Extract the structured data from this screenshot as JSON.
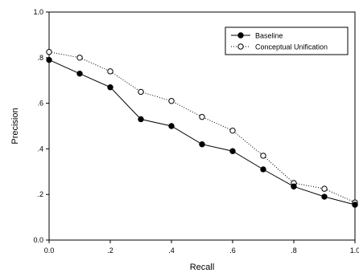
{
  "chart_data": {
    "type": "line",
    "title": "",
    "xlabel": "Recall",
    "ylabel": "Precision",
    "xlim": [
      0.0,
      1.0
    ],
    "ylim": [
      0.0,
      1.0
    ],
    "x_ticks": [
      0.0,
      0.2,
      0.4,
      0.6,
      0.8,
      1.0
    ],
    "x_tick_labels": [
      "0.0",
      ".2",
      ".4",
      ".6",
      ".8",
      "1.0"
    ],
    "y_ticks": [
      0.0,
      0.2,
      0.4,
      0.6,
      0.8,
      1.0
    ],
    "y_tick_labels": [
      "0.0",
      ".2",
      ".4",
      ".6",
      ".8",
      "1.0"
    ],
    "x": [
      0.0,
      0.1,
      0.2,
      0.3,
      0.4,
      0.5,
      0.6,
      0.7,
      0.8,
      0.9,
      1.0
    ],
    "series": [
      {
        "name": "Baseline",
        "line_style": "solid",
        "marker": "filled-circle",
        "values": [
          0.79,
          0.73,
          0.67,
          0.53,
          0.5,
          0.42,
          0.39,
          0.31,
          0.235,
          0.19,
          0.155
        ]
      },
      {
        "name": "Conceptual Unification",
        "line_style": "dotted",
        "marker": "open-circle",
        "values": [
          0.825,
          0.8,
          0.74,
          0.65,
          0.61,
          0.54,
          0.48,
          0.37,
          0.25,
          0.225,
          0.165
        ]
      }
    ],
    "grid": false,
    "legend_position": "top-right"
  }
}
